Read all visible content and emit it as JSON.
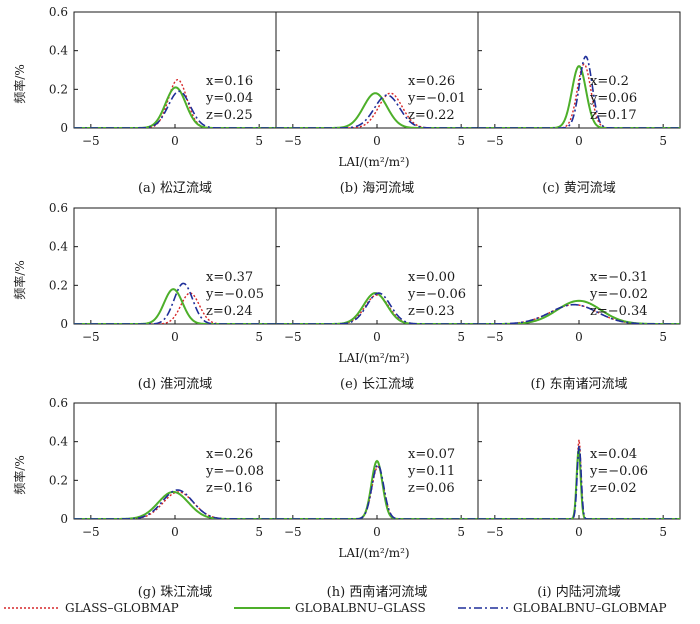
{
  "figure": {
    "ylabel": "频率/%",
    "xlabel": "LAI/(m²/m²)",
    "legend": [
      {
        "label": "GLASS–GLOBMAP",
        "color": "#d62728",
        "dash": "2,2",
        "width": 1.4
      },
      {
        "label": "GLOBALBNU–GLASS",
        "color": "#4daf2a",
        "dash": "",
        "width": 2.0
      },
      {
        "label": "GLOBALBNU–GLOBMAP",
        "color": "#1f2f9a",
        "dash": "8,3,2,3",
        "width": 1.6
      }
    ]
  },
  "chart_data": [
    {
      "type": "line",
      "caption": "(a) 松辽流域",
      "xlim": [
        -6,
        6
      ],
      "ylim": [
        0,
        0.6
      ],
      "xticks": [
        -5,
        0,
        5
      ],
      "yticks": [
        0,
        0.2,
        0.4,
        0.6
      ],
      "annotation": [
        "x=0.16",
        "y=0.04",
        "z=0.25"
      ],
      "series": [
        {
          "name": "GLASS–GLOBMAP",
          "peak": 0.25,
          "center": 0.16,
          "width": 0.55
        },
        {
          "name": "GLOBALBNU–GLASS",
          "peak": 0.21,
          "center": 0.04,
          "width": 0.6
        },
        {
          "name": "GLOBALBNU–GLOBMAP",
          "peak": 0.19,
          "center": 0.25,
          "width": 0.65
        }
      ]
    },
    {
      "type": "line",
      "caption": "(b) 海河流域",
      "xlim": [
        -6,
        6
      ],
      "ylim": [
        0,
        0.6
      ],
      "xticks": [
        -5,
        0,
        5
      ],
      "yticks": [
        0,
        0.2,
        0.4,
        0.6
      ],
      "annotation": [
        "x=0.26",
        "y=−0.01",
        "z=0.22"
      ],
      "series": [
        {
          "name": "GLASS–GLOBMAP",
          "peak": 0.18,
          "center": 0.8,
          "width": 0.7
        },
        {
          "name": "GLOBALBNU–GLASS",
          "peak": 0.18,
          "center": -0.1,
          "width": 0.7
        },
        {
          "name": "GLOBALBNU–GLOBMAP",
          "peak": 0.17,
          "center": 0.6,
          "width": 0.75
        }
      ]
    },
    {
      "type": "line",
      "caption": "(c) 黄河流域",
      "xlim": [
        -6,
        6
      ],
      "ylim": [
        0,
        0.6
      ],
      "xticks": [
        -5,
        0,
        5
      ],
      "yticks": [
        0,
        0.2,
        0.4,
        0.6
      ],
      "annotation": [
        "x=0.2",
        "y=0.06",
        "z=0.17"
      ],
      "series": [
        {
          "name": "GLASS–GLOBMAP",
          "peak": 0.33,
          "center": 0.3,
          "width": 0.4
        },
        {
          "name": "GLOBALBNU–GLASS",
          "peak": 0.32,
          "center": 0.0,
          "width": 0.42
        },
        {
          "name": "GLOBALBNU–GLOBMAP",
          "peak": 0.37,
          "center": 0.4,
          "width": 0.38
        }
      ]
    },
    {
      "type": "line",
      "caption": "(d) 淮河流域",
      "xlim": [
        -6,
        6
      ],
      "ylim": [
        0,
        0.6
      ],
      "xticks": [
        -5,
        0,
        5
      ],
      "yticks": [
        0,
        0.2,
        0.4,
        0.6
      ],
      "annotation": [
        "x=0.37",
        "y=−0.05",
        "z=0.24"
      ],
      "series": [
        {
          "name": "GLASS–GLOBMAP",
          "peak": 0.16,
          "center": 0.9,
          "width": 0.55
        },
        {
          "name": "GLOBALBNU–GLASS",
          "peak": 0.18,
          "center": -0.1,
          "width": 0.55
        },
        {
          "name": "GLOBALBNU–GLOBMAP",
          "peak": 0.21,
          "center": 0.5,
          "width": 0.55
        }
      ]
    },
    {
      "type": "line",
      "caption": "(e) 长江流域",
      "xlim": [
        -6,
        6
      ],
      "ylim": [
        0,
        0.6
      ],
      "xticks": [
        -5,
        0,
        5
      ],
      "yticks": [
        0,
        0.2,
        0.4,
        0.6
      ],
      "annotation": [
        "x=0.00",
        "y=−0.06",
        "z=0.23"
      ],
      "series": [
        {
          "name": "GLASS–GLOBMAP",
          "peak": 0.15,
          "center": 0.0,
          "width": 0.7
        },
        {
          "name": "GLOBALBNU–GLASS",
          "peak": 0.16,
          "center": -0.1,
          "width": 0.7
        },
        {
          "name": "GLOBALBNU–GLOBMAP",
          "peak": 0.16,
          "center": 0.1,
          "width": 0.7
        }
      ]
    },
    {
      "type": "line",
      "caption": "(f) 东南诸河流域",
      "xlim": [
        -6,
        6
      ],
      "ylim": [
        0,
        0.6
      ],
      "xticks": [
        -5,
        0,
        5
      ],
      "yticks": [
        0,
        0.2,
        0.4,
        0.6
      ],
      "annotation": [
        "x=−0.31",
        "y=−0.02",
        "z=−0.34"
      ],
      "series": [
        {
          "name": "GLASS–GLOBMAP",
          "peak": 0.1,
          "center": -0.3,
          "width": 1.4
        },
        {
          "name": "GLOBALBNU–GLASS",
          "peak": 0.12,
          "center": 0.0,
          "width": 1.3
        },
        {
          "name": "GLOBALBNU–GLOBMAP",
          "peak": 0.1,
          "center": -0.3,
          "width": 1.4
        }
      ]
    },
    {
      "type": "line",
      "caption": "(g) 珠江流域",
      "xlim": [
        -6,
        6
      ],
      "ylim": [
        0,
        0.6
      ],
      "xticks": [
        -5,
        0,
        5
      ],
      "yticks": [
        0,
        0.2,
        0.4,
        0.6
      ],
      "annotation": [
        "x=0.26",
        "y=−0.08",
        "z=0.16"
      ],
      "series": [
        {
          "name": "GLASS–GLOBMAP",
          "peak": 0.14,
          "center": 0.2,
          "width": 0.9
        },
        {
          "name": "GLOBALBNU–GLASS",
          "peak": 0.14,
          "center": -0.1,
          "width": 0.9
        },
        {
          "name": "GLOBALBNU–GLOBMAP",
          "peak": 0.15,
          "center": 0.15,
          "width": 0.9
        }
      ]
    },
    {
      "type": "line",
      "caption": "(h) 西南诸河流域",
      "xlim": [
        -6,
        6
      ],
      "ylim": [
        0,
        0.6
      ],
      "xticks": [
        -5,
        0,
        5
      ],
      "yticks": [
        0,
        0.2,
        0.4,
        0.6
      ],
      "annotation": [
        "x=0.07",
        "y=0.11",
        "z=0.06"
      ],
      "series": [
        {
          "name": "GLASS–GLOBMAP",
          "peak": 0.27,
          "center": 0.05,
          "width": 0.35
        },
        {
          "name": "GLOBALBNU–GLASS",
          "peak": 0.3,
          "center": 0.0,
          "width": 0.33
        },
        {
          "name": "GLOBALBNU–GLOBMAP",
          "peak": 0.28,
          "center": 0.05,
          "width": 0.35
        }
      ]
    },
    {
      "type": "line",
      "caption": "(i) 内陆河流域",
      "xlim": [
        -6,
        6
      ],
      "ylim": [
        0,
        0.6
      ],
      "xticks": [
        -5,
        0,
        5
      ],
      "yticks": [
        0,
        0.2,
        0.4,
        0.6
      ],
      "annotation": [
        "x=0.04",
        "y=−0.06",
        "z=0.02"
      ],
      "series": [
        {
          "name": "GLASS–GLOBMAP",
          "peak": 0.41,
          "center": 0.0,
          "width": 0.12
        },
        {
          "name": "GLOBALBNU–GLASS",
          "peak": 0.36,
          "center": -0.02,
          "width": 0.12
        },
        {
          "name": "GLOBALBNU–GLOBMAP",
          "peak": 0.38,
          "center": 0.01,
          "width": 0.12
        }
      ]
    }
  ]
}
